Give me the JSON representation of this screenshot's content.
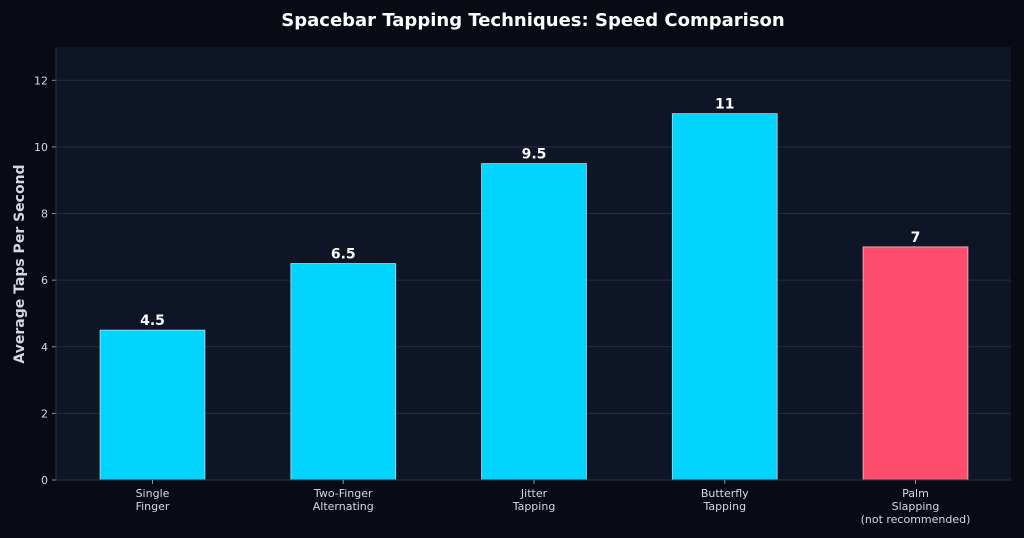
{
  "chart_data": {
    "type": "bar",
    "title": "Spacebar Tapping Techniques: Speed Comparison",
    "xlabel": "",
    "ylabel": "Average Taps Per Second",
    "categories": [
      [
        "Single",
        "Finger"
      ],
      [
        "Two-Finger",
        "Alternating"
      ],
      [
        "Jitter",
        "Tapping"
      ],
      [
        "Butterfly",
        "Tapping"
      ],
      [
        "Palm",
        "Slapping",
        "(not recommended)"
      ]
    ],
    "values": [
      4.5,
      6.5,
      9.5,
      11,
      7
    ],
    "value_labels": [
      "4.5",
      "6.5",
      "9.5",
      "11",
      "7"
    ],
    "bar_colors": [
      "#00d4ff",
      "#00d4ff",
      "#00d4ff",
      "#00d4ff",
      "#ff4d6d"
    ],
    "ylim": [
      0,
      13
    ],
    "yticks": [
      0,
      2,
      4,
      6,
      8,
      10,
      12
    ],
    "grid": true,
    "colors": {
      "figure_background": "#080b14",
      "plot_background": "#0e1526",
      "grid": "#1e3143",
      "text": "#d4d8e4",
      "bar_edge": "#ffffff"
    }
  }
}
